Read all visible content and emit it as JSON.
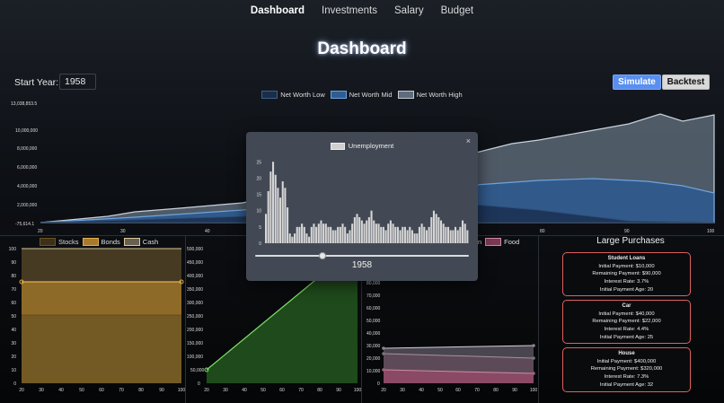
{
  "nav": {
    "items": [
      "Dashboard",
      "Investments",
      "Salary",
      "Budget"
    ],
    "active": "Dashboard"
  },
  "page": {
    "title": "Dashboard"
  },
  "controls": {
    "start_year_label": "Start Year:",
    "start_year_value": "1958",
    "simulate_label": "Simulate",
    "backtest_label": "Backtest"
  },
  "colors": {
    "low": "#1c3456",
    "mid": "#3f72a8",
    "high": "#7d8e9f",
    "stocks": "#6a5322",
    "bonds": "#a87a2c",
    "cash": "#8a7c58",
    "green": "#2e6a2a",
    "pink": "#b46a86",
    "accent": "#5a8ff0"
  },
  "networth": {
    "legend": [
      "Net Worth Low",
      "Net Worth Mid",
      "Net Worth High"
    ],
    "y_ticks": [
      "13,038,853.5",
      "10,000,000",
      "8,000,000",
      "6,000,000",
      "4,000,000",
      "2,000,000",
      "-75,614.1"
    ],
    "x_ticks": [
      "20",
      "30",
      "40",
      "80",
      "90",
      "100"
    ]
  },
  "allocation": {
    "legend": [
      "Stocks",
      "Bonds",
      "Cash"
    ],
    "y_ticks": [
      "100",
      "90",
      "80",
      "70",
      "60",
      "50",
      "40",
      "30",
      "20",
      "10",
      "0"
    ],
    "x_ticks": [
      "20",
      "30",
      "40",
      "50",
      "60",
      "70",
      "80",
      "90",
      "100"
    ],
    "bonds_pct": 75,
    "stocks_pct": 50
  },
  "savings": {
    "y_ticks": [
      "500,000",
      "450,000",
      "400,000",
      "350,000",
      "300,000",
      "250,000",
      "200,000",
      "150,000",
      "100,000",
      "50,000",
      "0"
    ],
    "x_ticks": [
      "20",
      "30",
      "40",
      "50",
      "60",
      "70",
      "80",
      "90",
      "100"
    ]
  },
  "expenses": {
    "legend_partial": "n",
    "legend_food": "Food",
    "y_ticks": [
      "80,000",
      "70,000",
      "60,000",
      "50,000",
      "40,000",
      "30,000",
      "20,000",
      "10,000",
      "0"
    ],
    "x_ticks": [
      "20",
      "30",
      "40",
      "50",
      "60",
      "70",
      "80",
      "90",
      "100"
    ]
  },
  "large_purchases": {
    "title": "Large Purchases",
    "items": [
      {
        "name": "Student Loans",
        "initial": "Initial Payment: $10,000",
        "remaining": "Remaining Payment: $90,000",
        "rate": "Interest Rate: 3.7%",
        "age": "Initial Payment Age: 20"
      },
      {
        "name": "Car",
        "initial": "Initial Payment: $40,000",
        "remaining": "Remaining Payment: $22,000",
        "rate": "Interest Rate: 4.4%",
        "age": "Initial Payment Age: 25"
      },
      {
        "name": "House",
        "initial": "Initial Payment: $400,000",
        "remaining": "Remaining Payment: $320,000",
        "rate": "Interest Rate: 7.3%",
        "age": "Initial Payment Age: 32"
      }
    ]
  },
  "modal": {
    "legend": "Unemployment",
    "close": "×",
    "year": "1958",
    "slider_fraction": 0.31
  },
  "chart_data": {
    "type": "bar",
    "series": [
      {
        "name": "Unemployment",
        "values": [
          9,
          16,
          22,
          25,
          21,
          17,
          14,
          19,
          17,
          11,
          3,
          2,
          3,
          5,
          5,
          6,
          5,
          3,
          2,
          5,
          6,
          5,
          6,
          7,
          6,
          6,
          5,
          5,
          4,
          4,
          5,
          5,
          6,
          5,
          3,
          4,
          6,
          8,
          9,
          8,
          7,
          6,
          7,
          8,
          10,
          7,
          6,
          6,
          5,
          5,
          4,
          6,
          7,
          6,
          5,
          5,
          4,
          5,
          5,
          4,
          5,
          4,
          3,
          3,
          5,
          6,
          5,
          4,
          5,
          8,
          10,
          9,
          8,
          7,
          6,
          5,
          5,
          4,
          4,
          5,
          4,
          5,
          7,
          6,
          4
        ]
      }
    ],
    "y_ticks": [
      "0",
      "5",
      "10",
      "15",
      "20",
      "25"
    ],
    "ylim": [
      0,
      27
    ]
  }
}
